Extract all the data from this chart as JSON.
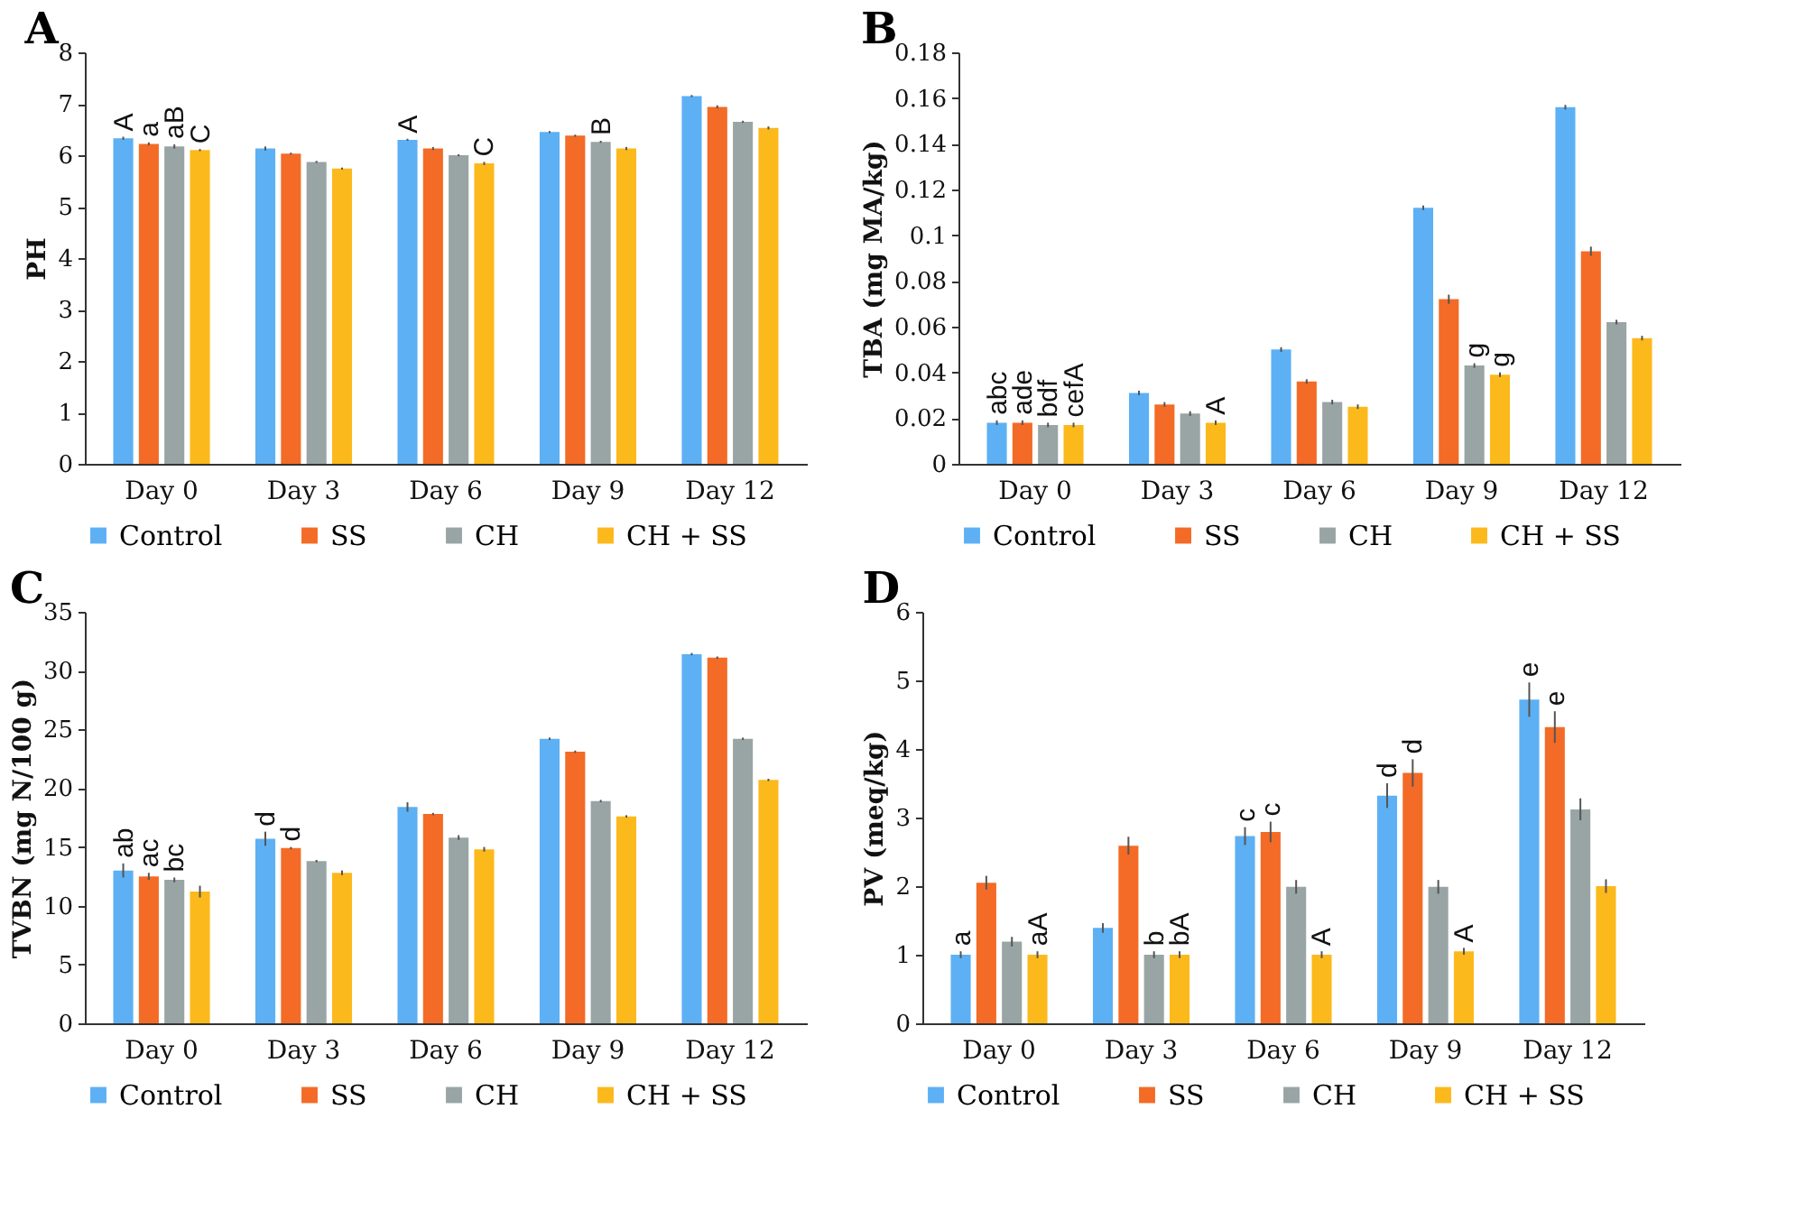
{
  "chart_data": [
    {
      "type": "bar",
      "title": "A",
      "ylabel": "PH",
      "categories": [
        "Day 0",
        "Day 3",
        "Day 6",
        "Day 9",
        "Day 12"
      ],
      "ylim": [
        0,
        8
      ],
      "yticks": [
        0,
        1,
        2,
        3,
        4,
        5,
        6,
        7,
        8
      ],
      "legend": "bottom",
      "series": [
        {
          "name": "Control",
          "color": "#5db0f4",
          "values": [
            6.33,
            6.13,
            6.3,
            6.45,
            7.15
          ],
          "errors": [
            0.03,
            0.04,
            0.02,
            0.02,
            0.02
          ],
          "value_labels": [
            "A",
            null,
            "A",
            null,
            null
          ]
        },
        {
          "name": "SS",
          "color": "#f36b26",
          "values": [
            6.22,
            6.03,
            6.13,
            6.38,
            6.94
          ],
          "errors": [
            0.03,
            0.02,
            0.03,
            0.02,
            0.03
          ],
          "value_labels": [
            "a",
            null,
            null,
            null,
            null
          ]
        },
        {
          "name": "CH",
          "color": "#98a5a4",
          "values": [
            6.17,
            5.87,
            6.0,
            6.26,
            6.65
          ],
          "errors": [
            0.04,
            0.02,
            0.02,
            0.02,
            0.02
          ],
          "value_labels": [
            "aB",
            null,
            null,
            "B",
            null
          ]
        },
        {
          "name": "CH + SS",
          "color": "#fcb91c",
          "values": [
            6.1,
            5.74,
            5.84,
            6.13,
            6.53
          ],
          "errors": [
            0.02,
            0.02,
            0.03,
            0.03,
            0.03
          ],
          "value_labels": [
            "C",
            null,
            "C",
            null,
            null
          ]
        }
      ]
    },
    {
      "type": "bar",
      "title": "B",
      "ylabel": "TBA (mg MA/kg)",
      "categories": [
        "Day 0",
        "Day 3",
        "Day 6",
        "Day 9",
        "Day 12"
      ],
      "ylim": [
        0,
        0.18
      ],
      "yticks": [
        0,
        0.02,
        0.04,
        0.06,
        0.08,
        0.1,
        0.12,
        0.14,
        0.16,
        0.18
      ],
      "legend": "bottom",
      "series": [
        {
          "name": "Control",
          "color": "#5db0f4",
          "values": [
            0.018,
            0.031,
            0.05,
            0.112,
            0.156
          ],
          "errors": [
            0.001,
            0.001,
            0.001,
            0.001,
            0.001
          ],
          "value_labels": [
            "abc",
            null,
            null,
            null,
            null
          ]
        },
        {
          "name": "SS",
          "color": "#f36b26",
          "values": [
            0.018,
            0.026,
            0.036,
            0.072,
            0.093
          ],
          "errors": [
            0.001,
            0.001,
            0.001,
            0.002,
            0.002
          ],
          "value_labels": [
            "ade",
            null,
            null,
            null,
            null
          ]
        },
        {
          "name": "CH",
          "color": "#98a5a4",
          "values": [
            0.017,
            0.022,
            0.027,
            0.043,
            0.062
          ],
          "errors": [
            0.001,
            0.001,
            0.001,
            0.001,
            0.001
          ],
          "value_labels": [
            "bdf",
            null,
            null,
            "g",
            null
          ]
        },
        {
          "name": "CH + SS",
          "color": "#fcb91c",
          "values": [
            0.017,
            0.018,
            0.025,
            0.039,
            0.055
          ],
          "errors": [
            0.001,
            0.001,
            0.001,
            0.001,
            0.001
          ],
          "value_labels": [
            "cefA",
            "A",
            null,
            "g",
            null
          ]
        }
      ]
    },
    {
      "type": "bar",
      "title": "C",
      "ylabel": "TVBN (mg N/100 g)",
      "categories": [
        "Day 0",
        "Day 3",
        "Day 6",
        "Day 9",
        "Day 12"
      ],
      "ylim": [
        0,
        35
      ],
      "yticks": [
        0,
        5,
        10,
        15,
        20,
        25,
        30,
        35
      ],
      "legend": "bottom",
      "series": [
        {
          "name": "Control",
          "color": "#5db0f4",
          "values": [
            13.0,
            15.7,
            18.4,
            24.2,
            31.4
          ],
          "errors": [
            0.6,
            0.6,
            0.4,
            0.1,
            0.1
          ],
          "value_labels": [
            "ab",
            "d",
            null,
            null,
            null
          ]
        },
        {
          "name": "SS",
          "color": "#f36b26",
          "values": [
            12.5,
            14.9,
            17.8,
            23.1,
            31.1
          ],
          "errors": [
            0.3,
            0.1,
            0.1,
            0.1,
            0.1
          ],
          "value_labels": [
            "ac",
            "d",
            null,
            null,
            null
          ]
        },
        {
          "name": "CH",
          "color": "#98a5a4",
          "values": [
            12.2,
            13.8,
            15.8,
            18.9,
            24.2
          ],
          "errors": [
            0.2,
            0.1,
            0.2,
            0.1,
            0.1
          ],
          "value_labels": [
            "bc",
            null,
            null,
            null,
            null
          ]
        },
        {
          "name": "CH + SS",
          "color": "#fcb91c",
          "values": [
            11.2,
            12.8,
            14.8,
            17.6,
            20.7
          ],
          "errors": [
            0.5,
            0.2,
            0.2,
            0.1,
            0.1
          ],
          "value_labels": [
            null,
            null,
            null,
            null,
            null
          ]
        }
      ]
    },
    {
      "type": "bar",
      "title": "D",
      "ylabel": "PV (meq/kg)",
      "categories": [
        "Day 0",
        "Day 3",
        "Day 6",
        "Day 9",
        "Day 12"
      ],
      "ylim": [
        0,
        6
      ],
      "yticks": [
        0,
        1,
        2,
        3,
        4,
        5,
        6
      ],
      "legend": "bottom",
      "series": [
        {
          "name": "Control",
          "color": "#5db0f4",
          "values": [
            1.0,
            1.39,
            2.73,
            3.32,
            4.72
          ],
          "errors": [
            0.05,
            0.07,
            0.13,
            0.18,
            0.25
          ],
          "value_labels": [
            "a",
            null,
            "c",
            "d",
            "e"
          ]
        },
        {
          "name": "SS",
          "color": "#f36b26",
          "values": [
            2.05,
            2.59,
            2.79,
            3.65,
            4.32
          ],
          "errors": [
            0.1,
            0.13,
            0.15,
            0.2,
            0.23
          ],
          "value_labels": [
            null,
            null,
            "c",
            "d",
            "e"
          ]
        },
        {
          "name": "CH",
          "color": "#98a5a4",
          "values": [
            1.19,
            1.0,
            1.99,
            1.99,
            3.12
          ],
          "errors": [
            0.07,
            0.05,
            0.1,
            0.1,
            0.16
          ],
          "value_labels": [
            null,
            "b",
            null,
            null,
            null
          ]
        },
        {
          "name": "CH + SS",
          "color": "#fcb91c",
          "values": [
            1.0,
            1.0,
            1.0,
            1.05,
            2.0
          ],
          "errors": [
            0.05,
            0.05,
            0.05,
            0.05,
            0.1
          ],
          "value_labels": [
            "aA",
            "bA",
            "A",
            "A",
            null
          ]
        }
      ]
    }
  ]
}
